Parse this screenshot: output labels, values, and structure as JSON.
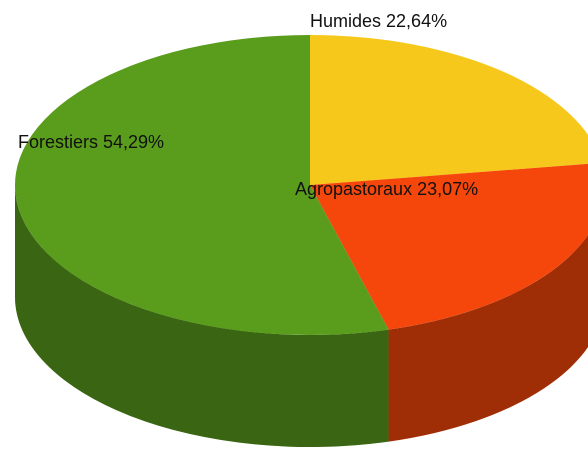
{
  "chart_data": {
    "type": "pie",
    "three_d": true,
    "categories": [
      "Humides",
      "Agropastoraux",
      "Forestiers"
    ],
    "values": [
      22.64,
      23.07,
      54.29
    ],
    "value_labels": [
      "22,64%",
      "23,07%",
      "54,29%"
    ],
    "colors": [
      "#f7c81c",
      "#f5470c",
      "#5a9c1c"
    ],
    "start_angle": -90
  }
}
